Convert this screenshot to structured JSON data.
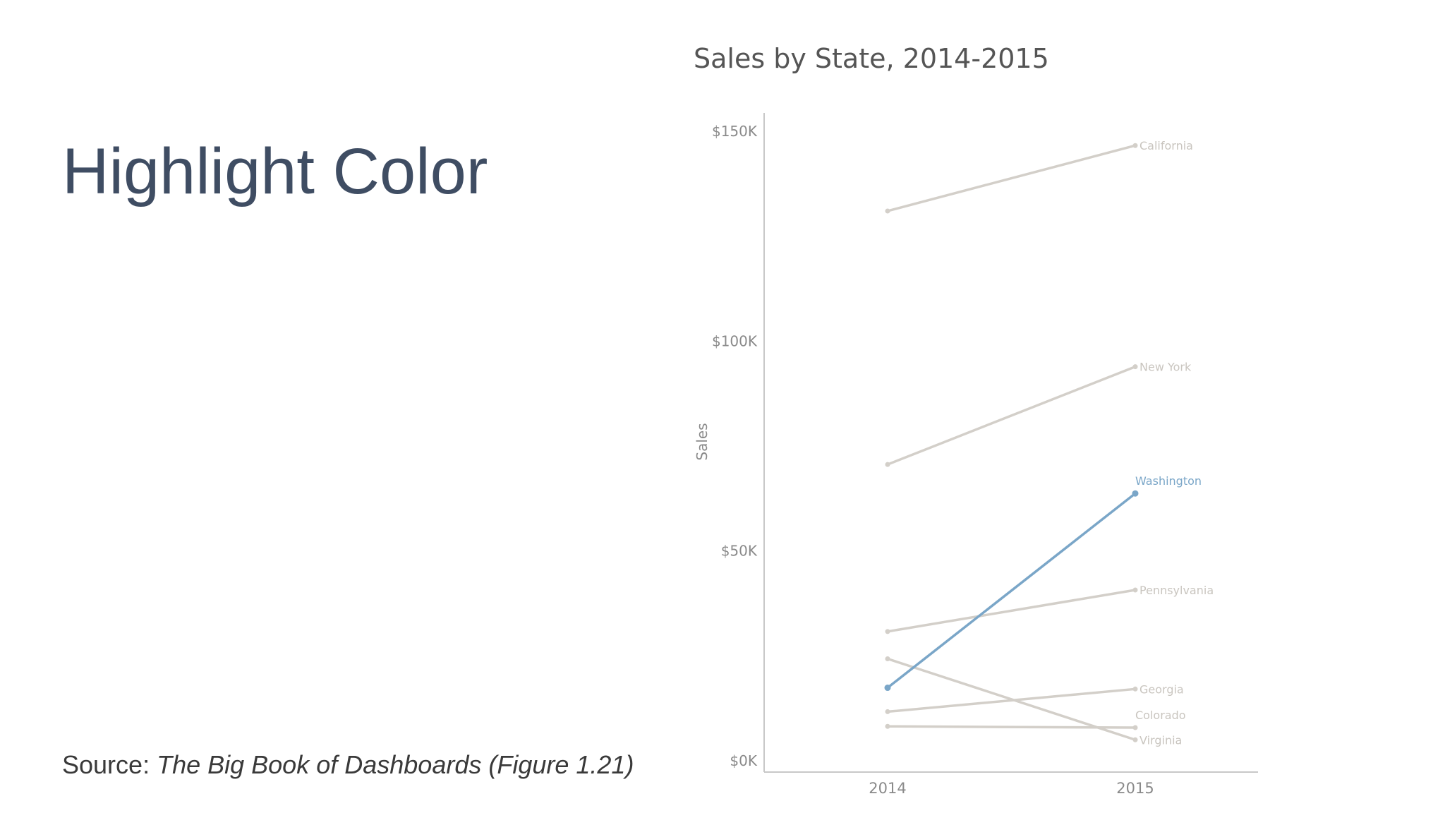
{
  "slide": {
    "title": "Highlight Color",
    "source_prefix": "Source: ",
    "source_book": "The Big Book of Dashboards (Figure 1.21)"
  },
  "colors": {
    "title": "#3f4d63",
    "muted_line": "#d3cfc9",
    "highlight_line": "#7aa6c8",
    "axis": "#c8c8c8",
    "tick_text": "#8a8a8a"
  },
  "chart_data": {
    "type": "line",
    "title": "Sales by State, 2014-2015",
    "xlabel": "",
    "ylabel": "Sales",
    "x": [
      "2014",
      "2015"
    ],
    "ylim": [
      0,
      150000
    ],
    "y_ticks": [
      {
        "value": 0,
        "label": "$0K"
      },
      {
        "value": 50000,
        "label": "$50K"
      },
      {
        "value": 100000,
        "label": "$100K"
      },
      {
        "value": 150000,
        "label": "$150K"
      }
    ],
    "grid": false,
    "highlight": "Washington",
    "series": [
      {
        "name": "California",
        "values": [
          131000,
          146600
        ]
      },
      {
        "name": "New York",
        "values": [
          70600,
          93900
        ]
      },
      {
        "name": "Washington",
        "values": [
          17400,
          63700
        ]
      },
      {
        "name": "Pennsylvania",
        "values": [
          30800,
          40700
        ]
      },
      {
        "name": "Georgia",
        "values": [
          11700,
          17100
        ]
      },
      {
        "name": "Colorado",
        "values": [
          8200,
          7900
        ]
      },
      {
        "name": "Virginia",
        "values": [
          24300,
          5000
        ]
      }
    ]
  }
}
